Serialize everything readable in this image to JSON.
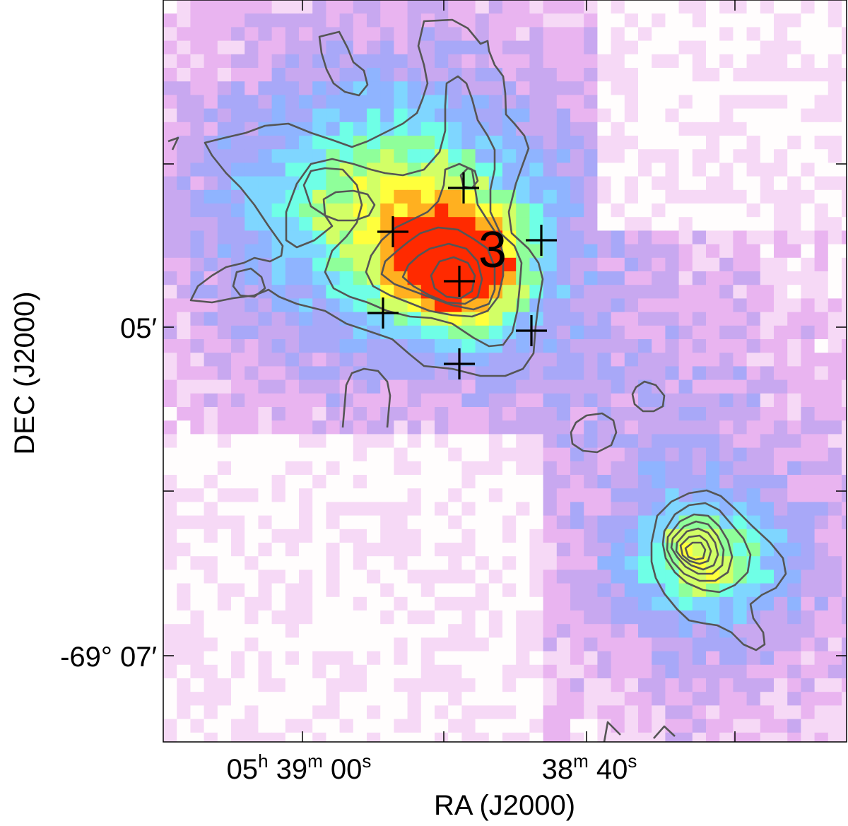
{
  "chart_data": {
    "type": "heatmap",
    "title": "",
    "xlabel": "RA (J2000)",
    "ylabel": "DEC (J2000)",
    "x_ticks": [
      {
        "label_main": "05",
        "parts": [
          [
            "05",
            "h"
          ],
          [
            " 39",
            "m"
          ],
          [
            " 00",
            "s"
          ]
        ]
      },
      {
        "label_main": "38",
        "parts": [
          [
            "38",
            "m"
          ],
          [
            " 40",
            "s"
          ]
        ]
      }
    ],
    "y_ticks": [
      {
        "label": "05′"
      },
      {
        "label": "-69° 07′"
      }
    ],
    "annotations": {
      "region_label": "3",
      "marker_symbol": "+",
      "marker_count": 8
    },
    "colormap": [
      "#fffdfd",
      "#f6d9f6",
      "#e9b4f0",
      "#c8a8f0",
      "#a8a8f8",
      "#8fb4ff",
      "#7fd6ff",
      "#6fffe6",
      "#8fff9a",
      "#d2ff66",
      "#ffff3c",
      "#ffb020",
      "#ff2a00"
    ],
    "contour_color": "#555555",
    "grid": false,
    "legend": "none"
  }
}
